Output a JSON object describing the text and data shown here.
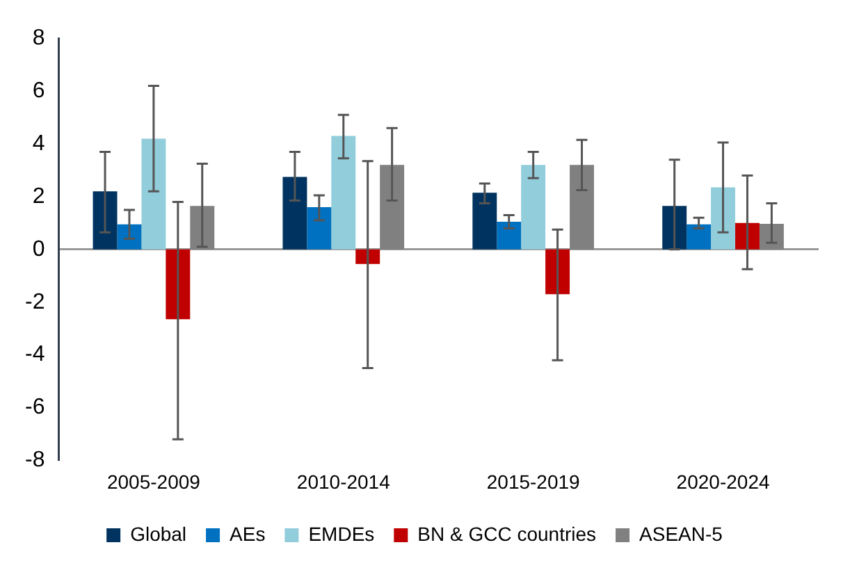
{
  "chart_data": {
    "type": "bar",
    "categories": [
      "2005-2009",
      "2010-2014",
      "2015-2019",
      "2020-2024"
    ],
    "series": [
      {
        "name": "Global",
        "color": "#00335f",
        "values": [
          2.2,
          2.75,
          2.15,
          1.65
        ],
        "errors": [
          [
            0.65,
            3.7
          ],
          [
            1.85,
            3.7
          ],
          [
            1.75,
            2.5
          ],
          [
            0,
            3.4
          ]
        ]
      },
      {
        "name": "AEs",
        "color": "#0070c0",
        "values": [
          0.95,
          1.6,
          1.05,
          0.95
        ],
        "errors": [
          [
            0.4,
            1.5
          ],
          [
            1.1,
            2.05
          ],
          [
            0.8,
            1.3
          ],
          [
            0.8,
            1.2
          ]
        ]
      },
      {
        "name": "EMDEs",
        "color": "#92cddc",
        "values": [
          4.2,
          4.3,
          3.2,
          2.35
        ],
        "errors": [
          [
            2.2,
            6.2
          ],
          [
            3.45,
            5.1
          ],
          [
            2.7,
            3.7
          ],
          [
            0.65,
            4.05
          ]
        ]
      },
      {
        "name": "BN & GCC countries",
        "color": "#c00000",
        "values": [
          -2.65,
          -0.55,
          -1.7,
          1.0
        ],
        "errors": [
          [
            -7.2,
            1.8
          ],
          [
            -4.5,
            3.35
          ],
          [
            -4.2,
            0.75
          ],
          [
            -0.75,
            2.8
          ]
        ]
      },
      {
        "name": "ASEAN-5",
        "color": "#808080",
        "values": [
          1.65,
          3.2,
          3.2,
          0.97
        ],
        "errors": [
          [
            0.1,
            3.25
          ],
          [
            1.85,
            4.6
          ],
          [
            2.25,
            4.15
          ],
          [
            0.25,
            1.75
          ]
        ]
      }
    ],
    "ylim": [
      -8,
      8
    ],
    "yticks": [
      -8,
      -6,
      -4,
      -2,
      0,
      2,
      4,
      6,
      8
    ],
    "legend": "bottom"
  }
}
